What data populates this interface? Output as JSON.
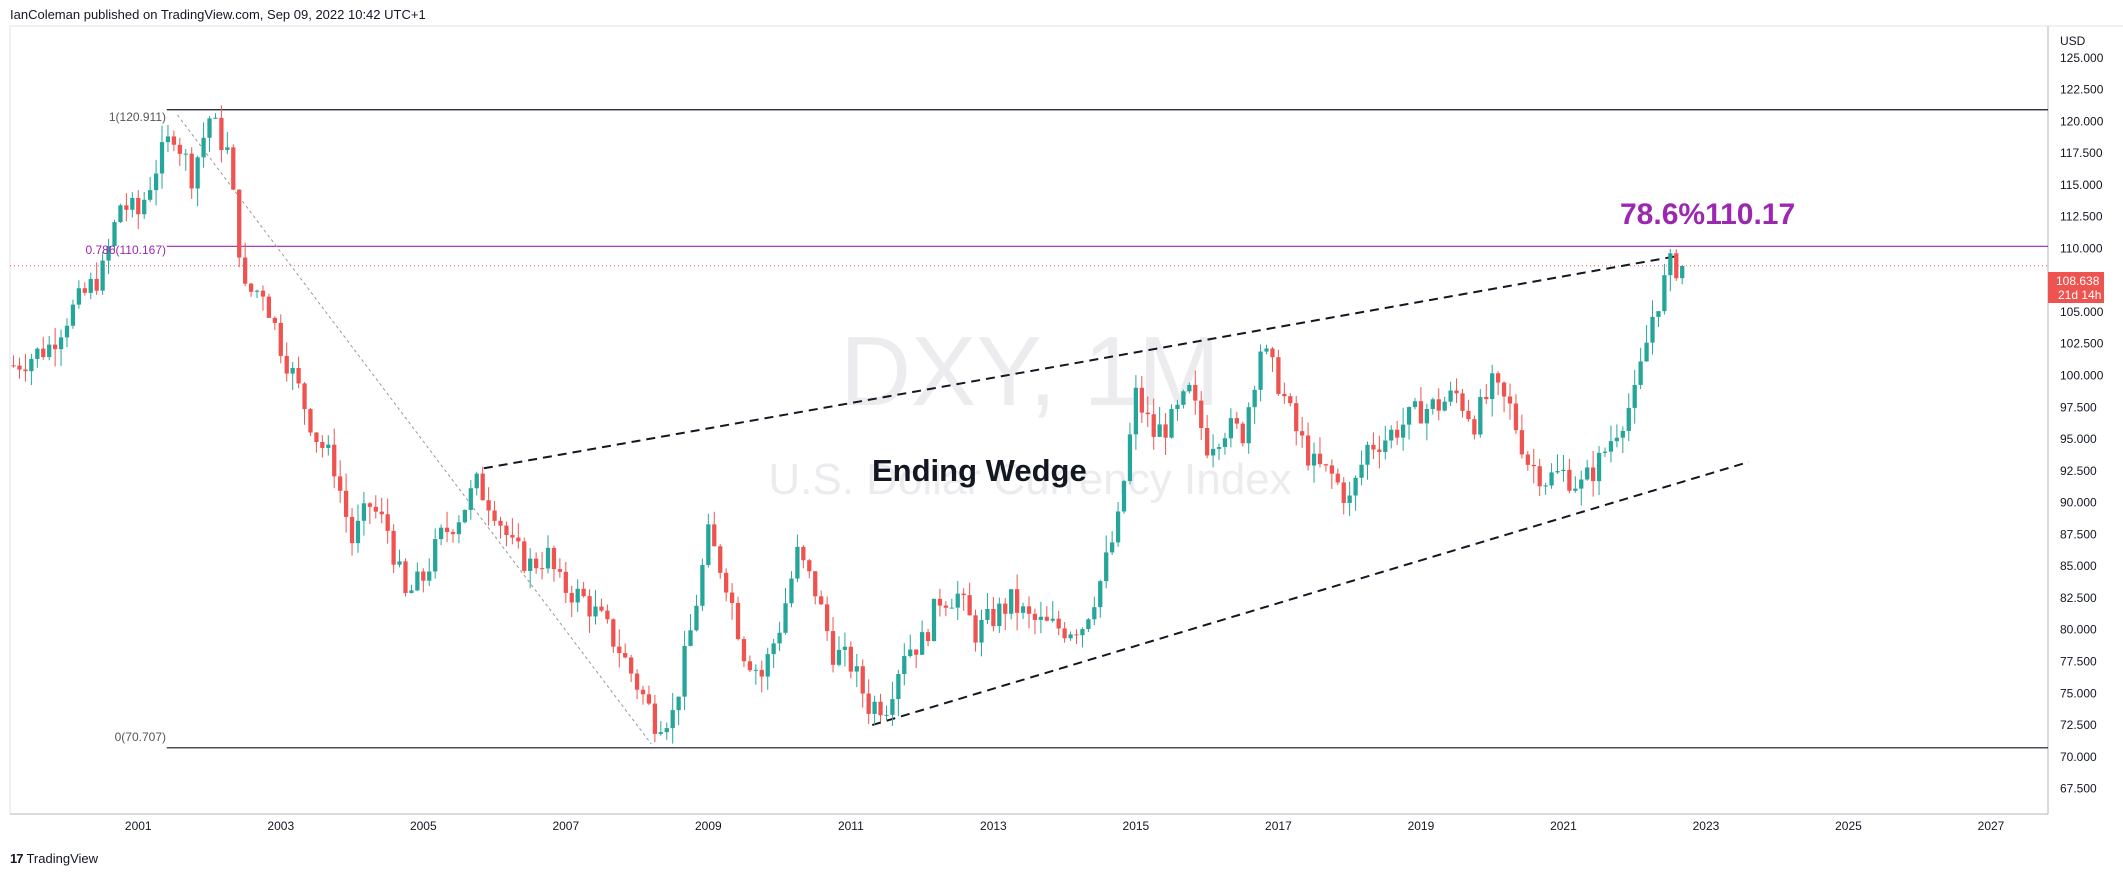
{
  "header": {
    "published_by": "IanColeman published on TradingView.com, Sep 09, 2022 10:42 UTC+1"
  },
  "footer": {
    "logo_mark": "17",
    "brand": "TradingView"
  },
  "colors": {
    "bull": "#26a69a",
    "bear": "#ef5350",
    "purple": "#9c27b0",
    "fib_line": "#000000",
    "dotted_price": "#ef5350",
    "watermark": "#ececef"
  },
  "chart_data": {
    "type": "candlestick",
    "symbol": "DXY, 1M",
    "symbol_description": "U.S. Dollar Currency Index",
    "currency": "USD",
    "y_ticks": [
      "125.000",
      "122.500",
      "120.000",
      "117.500",
      "115.000",
      "112.500",
      "110.000",
      "107.500",
      "105.000",
      "102.500",
      "100.000",
      "97.500",
      "95.000",
      "92.500",
      "90.000",
      "87.500",
      "85.000",
      "82.500",
      "80.000",
      "77.500",
      "75.000",
      "72.500",
      "70.000",
      "67.500"
    ],
    "x_ticks": [
      "2001",
      "2003",
      "2005",
      "2007",
      "2009",
      "2011",
      "2013",
      "2015",
      "2017",
      "2019",
      "2021",
      "2023",
      "2025",
      "2027"
    ],
    "ylim": [
      65.5,
      127.5
    ],
    "xlim": [
      1999.2,
      2027.8
    ],
    "current_price": {
      "label": "108.638",
      "value": 108.638,
      "countdown": "21d 14h"
    },
    "annotations": {
      "fib_100": {
        "label": "1(120.911)",
        "value": 120.911,
        "x_start": 2001.4
      },
      "fib_786": {
        "label": "0.786(110.167)",
        "value": 110.167,
        "x_start": 2001.4
      },
      "fib_0": {
        "label": "0(70.707)",
        "value": 70.707,
        "x_start": 2001.4
      },
      "big_label": "78.6%110.17",
      "pattern_label": "Ending Wedge"
    },
    "trendlines": [
      {
        "style": "dashed",
        "points": [
          [
            2005.85,
            92.7
          ],
          [
            2022.6,
            109.4
          ]
        ]
      },
      {
        "style": "dashed",
        "points": [
          [
            2011.3,
            72.5
          ],
          [
            2023.6,
            93.2
          ]
        ]
      },
      {
        "style": "dotted",
        "points": [
          [
            2001.55,
            120.5
          ],
          [
            2008.2,
            71.0
          ]
        ]
      }
    ],
    "monthly_closes": [
      [
        1999.25,
        100.8
      ],
      [
        1999.5,
        101.5
      ],
      [
        1999.75,
        102.3
      ],
      [
        2000.0,
        104.6
      ],
      [
        2000.25,
        106.4
      ],
      [
        2000.5,
        108.2
      ],
      [
        2000.75,
        113.5
      ],
      [
        2001.0,
        112.7
      ],
      [
        2001.25,
        116.4
      ],
      [
        2001.5,
        119.2
      ],
      [
        2001.75,
        115.8
      ],
      [
        2002.0,
        120.3
      ],
      [
        2002.25,
        117.6
      ],
      [
        2002.5,
        106.5
      ],
      [
        2002.75,
        106.8
      ],
      [
        2003.0,
        102.4
      ],
      [
        2003.25,
        98.9
      ],
      [
        2003.5,
        95.2
      ],
      [
        2003.75,
        92.9
      ],
      [
        2004.0,
        87.0
      ],
      [
        2004.25,
        89.8
      ],
      [
        2004.5,
        87.9
      ],
      [
        2004.75,
        82.5
      ],
      [
        2005.0,
        84.1
      ],
      [
        2005.25,
        87.3
      ],
      [
        2005.5,
        89.0
      ],
      [
        2005.75,
        91.4
      ],
      [
        2006.0,
        89.6
      ],
      [
        2006.25,
        86.4
      ],
      [
        2006.5,
        85.1
      ],
      [
        2006.75,
        85.8
      ],
      [
        2006.9,
        83.6
      ],
      [
        2007.25,
        82.4
      ],
      [
        2007.5,
        80.7
      ],
      [
        2007.75,
        78.5
      ],
      [
        2008.0,
        75.7
      ],
      [
        2008.25,
        72.9
      ],
      [
        2008.5,
        73.3
      ],
      [
        2008.75,
        79.8
      ],
      [
        2009.0,
        87.3
      ],
      [
        2009.25,
        83.9
      ],
      [
        2009.5,
        78.3
      ],
      [
        2009.75,
        76.4
      ],
      [
        2010.0,
        80.3
      ],
      [
        2010.25,
        85.9
      ],
      [
        2010.5,
        83.1
      ],
      [
        2010.75,
        78.3
      ],
      [
        2011.0,
        77.3
      ],
      [
        2011.25,
        74.1
      ],
      [
        2011.5,
        74.2
      ],
      [
        2011.75,
        78.5
      ],
      [
        2012.0,
        79.0
      ],
      [
        2012.25,
        82.5
      ],
      [
        2012.5,
        82.7
      ],
      [
        2012.75,
        79.8
      ],
      [
        2013.0,
        81.0
      ],
      [
        2013.25,
        82.2
      ],
      [
        2013.5,
        80.8
      ],
      [
        2013.75,
        80.3
      ],
      [
        2014.0,
        80.1
      ],
      [
        2014.25,
        80.4
      ],
      [
        2014.5,
        83.8
      ],
      [
        2014.75,
        88.4
      ],
      [
        2015.0,
        98.4
      ],
      [
        2015.25,
        95.4
      ],
      [
        2015.5,
        96.3
      ],
      [
        2015.75,
        98.6
      ],
      [
        2016.0,
        94.6
      ],
      [
        2016.25,
        95.9
      ],
      [
        2016.5,
        95.5
      ],
      [
        2016.75,
        102.2
      ],
      [
        2017.0,
        99.5
      ],
      [
        2017.25,
        95.6
      ],
      [
        2017.5,
        92.9
      ],
      [
        2017.75,
        92.1
      ],
      [
        2018.0,
        90.1
      ],
      [
        2018.25,
        94.4
      ],
      [
        2018.5,
        95.1
      ],
      [
        2018.75,
        96.2
      ],
      [
        2019.0,
        97.3
      ],
      [
        2019.25,
        97.7
      ],
      [
        2019.5,
        98.5
      ],
      [
        2019.75,
        96.4
      ],
      [
        2020.0,
        99.1
      ],
      [
        2020.25,
        97.4
      ],
      [
        2020.5,
        93.3
      ],
      [
        2020.75,
        91.9
      ],
      [
        2021.0,
        92.3
      ],
      [
        2021.25,
        91.3
      ],
      [
        2021.5,
        93.2
      ],
      [
        2021.75,
        95.9
      ],
      [
        2022.0,
        98.3
      ],
      [
        2022.25,
        104.7
      ],
      [
        2022.5,
        108.6
      ]
    ]
  }
}
